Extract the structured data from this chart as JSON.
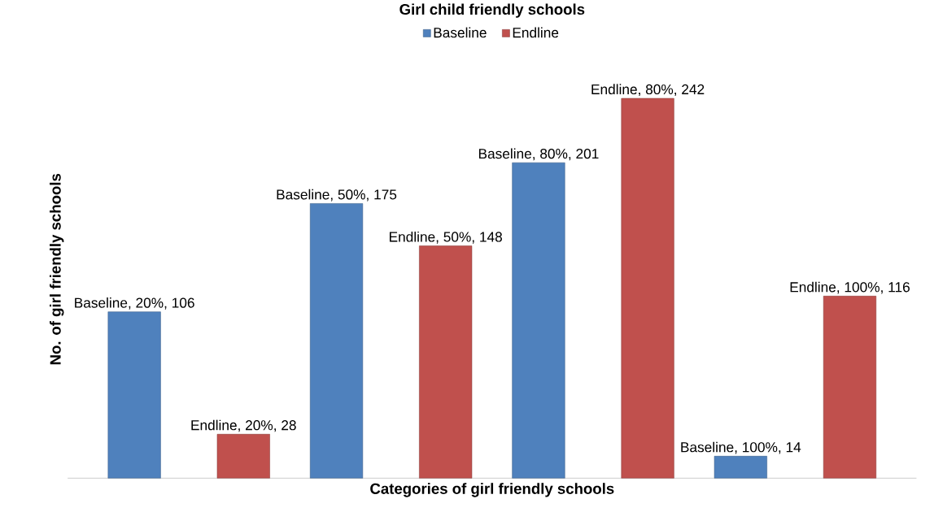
{
  "chart_data": {
    "type": "bar",
    "title": "Girl child friendly schools",
    "xlabel": "Categories of girl friendly schools",
    "ylabel": "No. of girl friendly schools",
    "categories": [
      null,
      null,
      null,
      null
    ],
    "series": [
      {
        "name": "Baseline",
        "color": "#4f81bd",
        "values": [
          106,
          175,
          201,
          14
        ],
        "value_labels": [
          "Baseline, 20%, 106",
          "Baseline, 50%, 175",
          "Baseline, 80%, 201",
          "Baseline, 100%, 14"
        ]
      },
      {
        "name": "Endline",
        "color": "#c0504d",
        "values": [
          28,
          148,
          242,
          116
        ],
        "value_labels": [
          "Endline, 20%, 28",
          "Endline, 50%, 148",
          "Endline, 80%, 242",
          "Endline, 100%, 116"
        ]
      }
    ],
    "legend": "top"
  }
}
